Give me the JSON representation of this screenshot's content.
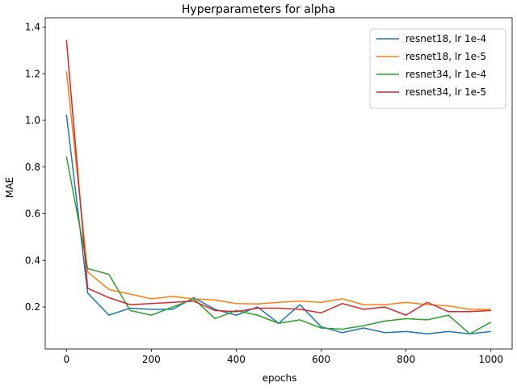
{
  "chart_data": {
    "type": "line",
    "title": "Hyperparameters for alpha",
    "x_label": "epochs",
    "y_label": "MAE",
    "x": [
      0,
      50,
      100,
      150,
      200,
      250,
      300,
      350,
      400,
      450,
      500,
      550,
      600,
      650,
      700,
      750,
      800,
      850,
      900,
      950,
      1000
    ],
    "series": [
      {
        "name": "resnet18, lr 1e-4",
        "color": "#1f77b4",
        "values": [
          1.025,
          0.26,
          0.165,
          0.195,
          0.19,
          0.19,
          0.24,
          0.19,
          0.165,
          0.2,
          0.13,
          0.21,
          0.115,
          0.09,
          0.11,
          0.09,
          0.095,
          0.085,
          0.095,
          0.085,
          0.095
        ]
      },
      {
        "name": "resnet18, lr 1e-5",
        "color": "#ff7f0e",
        "values": [
          1.21,
          0.35,
          0.275,
          0.255,
          0.235,
          0.245,
          0.235,
          0.23,
          0.215,
          0.213,
          0.22,
          0.225,
          0.22,
          0.235,
          0.21,
          0.21,
          0.22,
          0.21,
          0.205,
          0.19,
          0.19
        ]
      },
      {
        "name": "resnet34, lr 1e-4",
        "color": "#2ca02c",
        "values": [
          0.845,
          0.365,
          0.34,
          0.185,
          0.165,
          0.2,
          0.235,
          0.15,
          0.185,
          0.165,
          0.13,
          0.145,
          0.11,
          0.105,
          0.12,
          0.14,
          0.15,
          0.145,
          0.165,
          0.085,
          0.135
        ]
      },
      {
        "name": "resnet34, lr 1e-5",
        "color": "#d62728",
        "values": [
          1.345,
          0.28,
          0.24,
          0.21,
          0.215,
          0.22,
          0.225,
          0.185,
          0.18,
          0.195,
          0.195,
          0.19,
          0.175,
          0.215,
          0.19,
          0.2,
          0.165,
          0.22,
          0.18,
          0.18,
          0.185
        ]
      }
    ],
    "xlim": [
      -50,
      1050
    ],
    "xticks": [
      0,
      200,
      400,
      600,
      800,
      1000
    ],
    "ylim": [
      0.02,
      1.44
    ],
    "yticks": [
      0.2,
      0.4,
      0.6,
      0.8,
      {
        "value": 1,
        "label": "1.0"
      },
      1.2,
      1.4
    ],
    "legend": "upper right"
  }
}
